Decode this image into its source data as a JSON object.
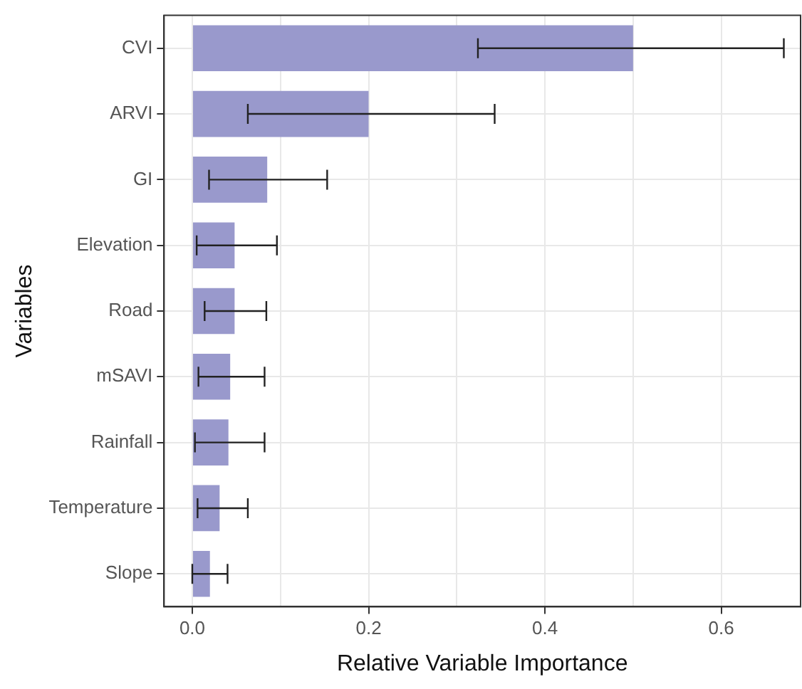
{
  "chart_data": {
    "type": "bar",
    "orientation": "horizontal",
    "xlabel": "Relative Variable Importance",
    "ylabel": "Variables",
    "categories": [
      "CVI",
      "ARVI",
      "GI",
      "Elevation",
      "Road",
      "mSAVI",
      "Rainfall",
      "Temperature",
      "Slope"
    ],
    "values": [
      0.5,
      0.2,
      0.085,
      0.048,
      0.048,
      0.043,
      0.041,
      0.031,
      0.02
    ],
    "errors": [
      [
        0.324,
        0.671
      ],
      [
        0.063,
        0.343
      ],
      [
        0.019,
        0.153
      ],
      [
        0.005,
        0.096
      ],
      [
        0.014,
        0.084
      ],
      [
        0.007,
        0.082
      ],
      [
        0.003,
        0.082
      ],
      [
        0.006,
        0.063
      ],
      [
        0.0,
        0.04
      ]
    ],
    "color": "#9999cc",
    "xlim": [
      -0.032,
      0.69
    ],
    "xticks": [
      {
        "value": 0,
        "label": "0.0"
      },
      {
        "value": 0.1,
        "label": null
      },
      0.2,
      {
        "value": 0.3,
        "label": null
      },
      0.4,
      {
        "value": 0.5,
        "label": null
      },
      0.6
    ],
    "grid": true,
    "legend": false
  }
}
